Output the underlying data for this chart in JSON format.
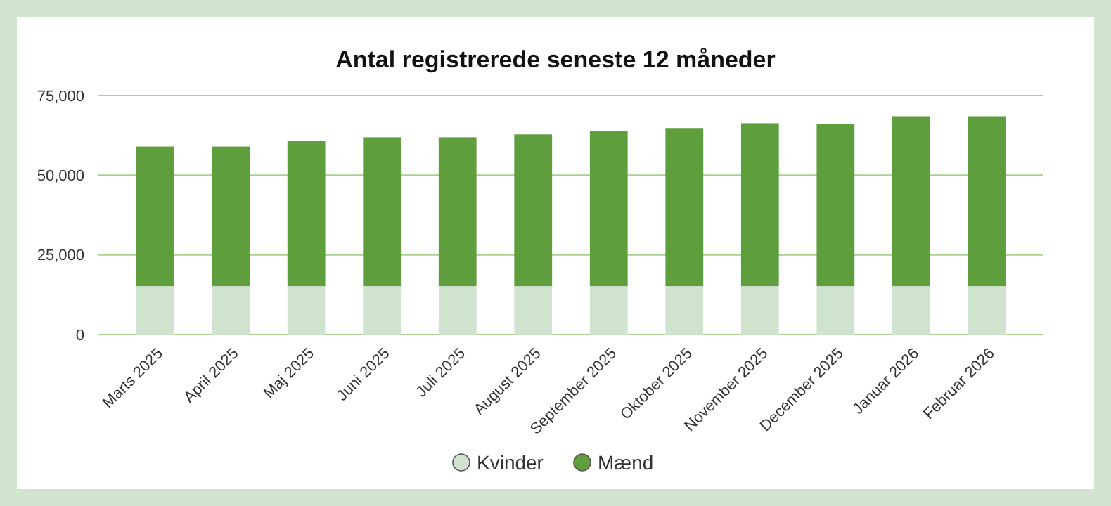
{
  "chart_data": {
    "type": "bar",
    "title": "Antal registrerede seneste 12 måneder",
    "categories": [
      "Marts 2025",
      "April 2025",
      "Maj 2025",
      "Juni 2025",
      "Juli 2025",
      "August 2025",
      "September 2025",
      "Oktober 2025",
      "November 2025",
      "December 2025",
      "Januar 2026",
      "Februar 2026"
    ],
    "series": [
      {
        "name": "Kvinder",
        "color": "#d0e3cf",
        "values": [
          15200,
          15200,
          15200,
          15200,
          15200,
          15200,
          15200,
          15200,
          15200,
          15200,
          15200,
          15200
        ]
      },
      {
        "name": "Mænd",
        "color": "#5f9e3d",
        "values": [
          43800,
          43800,
          45500,
          46700,
          46700,
          47600,
          48600,
          49600,
          51100,
          50900,
          53300,
          53300
        ]
      }
    ],
    "stacked": true,
    "ylim": [
      0,
      75000
    ],
    "yticks": [
      {
        "value": 0,
        "label": "0"
      },
      {
        "value": 25000,
        "label": "25,000"
      },
      {
        "value": 50000,
        "label": "50,000"
      },
      {
        "value": 75000,
        "label": "75,000"
      }
    ],
    "grid": "y",
    "legend": "bottom"
  }
}
